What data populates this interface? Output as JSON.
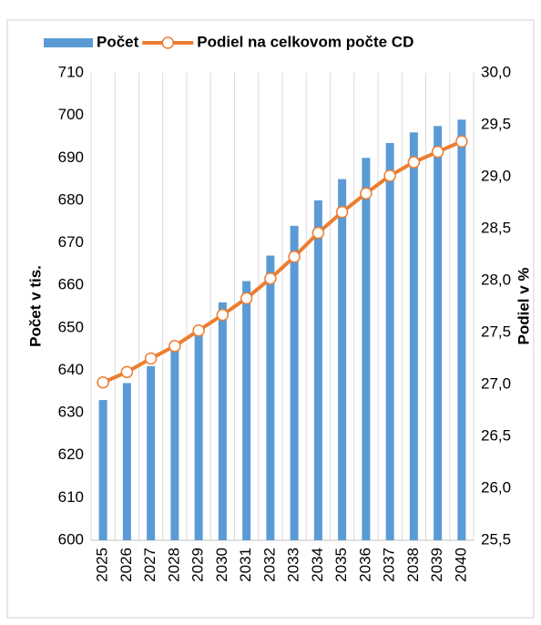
{
  "chart_data": {
    "type": "bar-line",
    "categories": [
      "2025",
      "2026",
      "2027",
      "2028",
      "2029",
      "2030",
      "2031",
      "2032",
      "2033",
      "2034",
      "2035",
      "2036",
      "2037",
      "2038",
      "2039",
      "2040"
    ],
    "series": [
      {
        "name": "Počet",
        "color": "#5b9bd5",
        "type": "bar",
        "axis": "y",
        "values": [
          633,
          637,
          641,
          645,
          649,
          656,
          661,
          667,
          674,
          680,
          685,
          690,
          693.5,
          696,
          697.5,
          699
        ]
      },
      {
        "name": "Podiel na celkovom počte CD",
        "color": "#ed7d31",
        "type": "line",
        "axis": "y2",
        "values": [
          27.02,
          27.12,
          27.25,
          27.37,
          27.52,
          27.67,
          27.83,
          28.02,
          28.23,
          28.46,
          28.66,
          28.84,
          29.01,
          29.14,
          29.24,
          29.34
        ]
      }
    ],
    "y_label": "Počet v tis.",
    "y2_label": "Podiel v %",
    "ylim": [
      600,
      710
    ],
    "yticks": [
      600,
      610,
      620,
      630,
      640,
      650,
      660,
      670,
      680,
      690,
      700,
      710
    ],
    "y2lim": [
      25.5,
      30
    ],
    "y2ticks": [
      {
        "value": 25.5,
        "label": "25,5"
      },
      {
        "value": 26,
        "label": "26,0"
      },
      {
        "value": 26.5,
        "label": "26,5"
      },
      {
        "value": 27,
        "label": "27,0"
      },
      {
        "value": 27.5,
        "label": "27,5"
      },
      {
        "value": 28,
        "label": "28,0"
      },
      {
        "value": 28.5,
        "label": "28,5"
      },
      {
        "value": 29,
        "label": "29,0"
      },
      {
        "value": 29.5,
        "label": "29,5"
      },
      {
        "value": 30,
        "label": "30,0"
      }
    ],
    "grid": "vertical",
    "legend": "top"
  }
}
